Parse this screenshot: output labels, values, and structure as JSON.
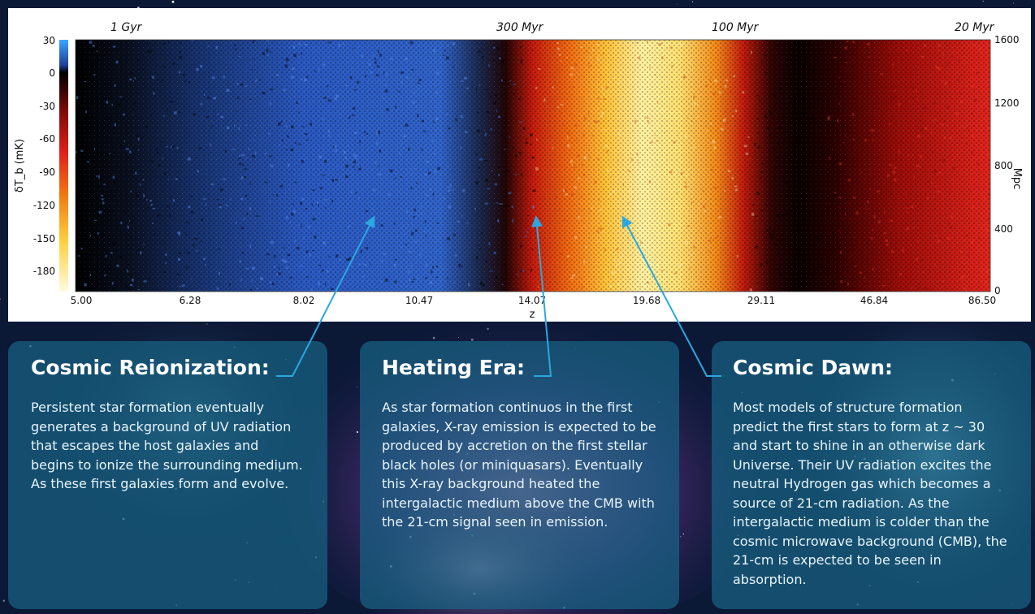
{
  "chart_data": {
    "type": "heatmap",
    "title": "",
    "xlabel": "z",
    "ylabel": "δT_b (mK)",
    "right_ylabel": "Mpc",
    "x_ticks": [
      "5.00",
      "6.28",
      "8.02",
      "10.47",
      "14.07",
      "19.68",
      "29.11",
      "46.84",
      "86.50"
    ],
    "top_axis_labels": [
      {
        "label": "1 Gyr",
        "z": 5.6
      },
      {
        "label": "300 Myr",
        "z": 14.0
      },
      {
        "label": "100 Myr",
        "z": 29.0
      },
      {
        "label": "20 Myr",
        "z": 86.5
      }
    ],
    "colorbar": {
      "label": "δT_b (mK)",
      "ticks": [
        "30",
        "0",
        "-30",
        "-60",
        "-90",
        "-120",
        "-150",
        "-180"
      ],
      "range": [
        -200,
        30
      ]
    },
    "right_axis": {
      "label": "Mpc",
      "ticks": [
        "1600",
        "1200",
        "800",
        "400",
        "0"
      ],
      "range": [
        0,
        1600
      ]
    },
    "regions": [
      {
        "name": "reionization",
        "z_start": 5.0,
        "z_end": 12.5,
        "dTb": 15
      },
      {
        "name": "heating",
        "z_start": 12.5,
        "z_end": 24.0,
        "dTb": -190
      },
      {
        "name": "dark",
        "z_start": 24.0,
        "z_end": 35.0,
        "dTb": 0
      },
      {
        "name": "cosmic_dawn_absorption",
        "z_start": 35.0,
        "z_end": 86.5,
        "dTb": -40
      }
    ]
  },
  "panels": [
    {
      "title": "Cosmic Reionization:",
      "body": "Persistent star formation eventually generates a background of UV radiation that escapes the host galaxies and begins to ionize the surrounding medium. As these first galaxies form and evolve."
    },
    {
      "title": "Heating Era:",
      "body": "As star formation continuos in the first galaxies, X-ray emission is expected to be produced by accretion on the first stellar black holes (or miniquasars). Eventually this X-ray background heated the intergalactic medium above the CMB with the 21-cm signal seen in emission."
    },
    {
      "title": "Cosmic Dawn:",
      "body": "Most models of structure formation predict the first stars to form at z ~ 30 and start to shine in an otherwise dark Universe. Their UV radiation excites the neutral Hydrogen gas which becomes a source of 21-cm radiation. As the intergalactic medium is colder than the cosmic microwave background (CMB), the 21-cm is expected to be seen in absorption."
    }
  ],
  "colors": {
    "arrow": "#2aa8e0",
    "panel": "#186284",
    "emission_blue": "#2e5fc8",
    "absorption_yellow": "#fff2a0",
    "absorption_red": "#e0201a"
  }
}
